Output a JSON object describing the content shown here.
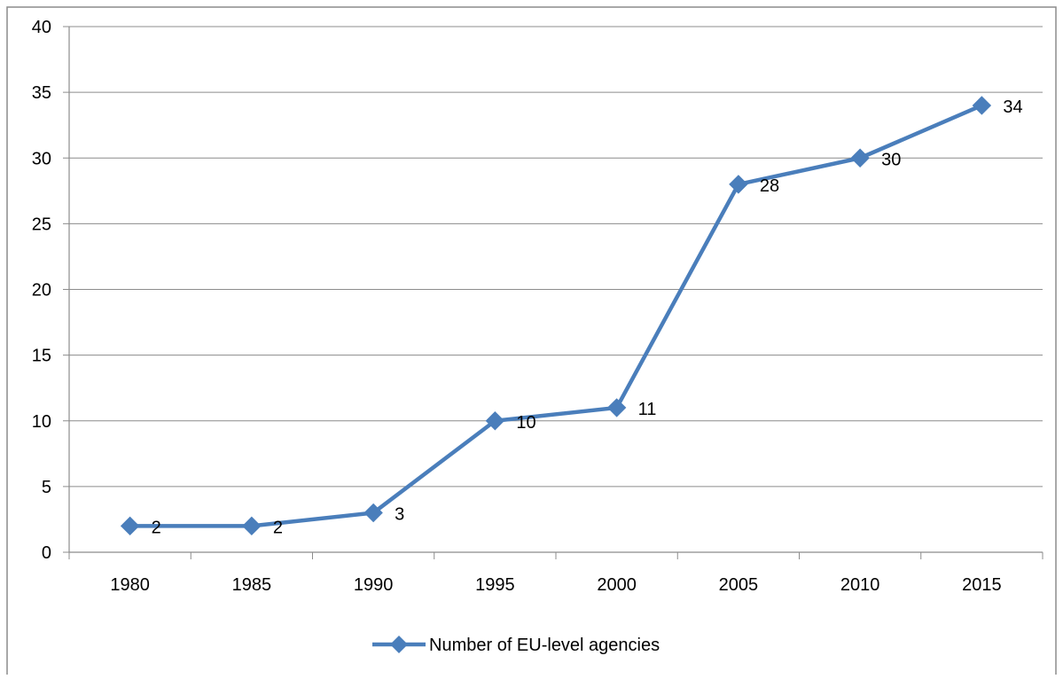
{
  "chart_data": {
    "type": "line",
    "title": "",
    "xlabel": "",
    "ylabel": "",
    "categories": [
      "1980",
      "1985",
      "1990",
      "1995",
      "2000",
      "2005",
      "2010",
      "2015"
    ],
    "ylim": [
      0,
      40
    ],
    "yticks": [
      0,
      5,
      10,
      15,
      20,
      25,
      30,
      35,
      40
    ],
    "grid": true,
    "legend_position": "bottom",
    "series": [
      {
        "name": "Number of EU-level agencies",
        "values": [
          2,
          2,
          3,
          10,
          11,
          28,
          30,
          34
        ],
        "color": "#4a7ebb",
        "marker": "diamond"
      }
    ]
  }
}
